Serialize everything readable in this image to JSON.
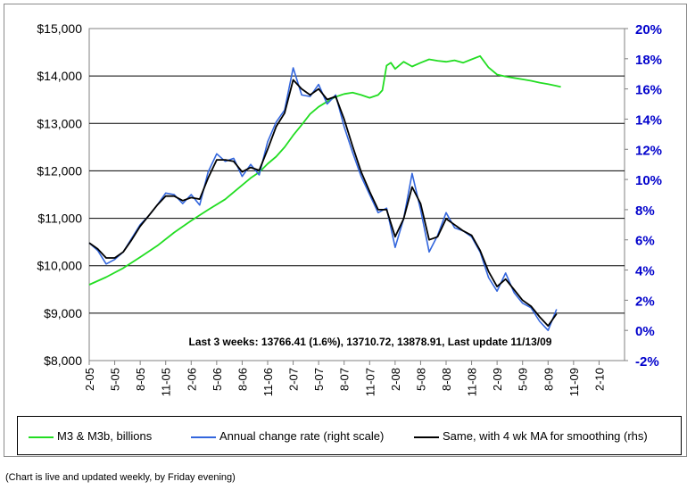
{
  "chart_data": {
    "type": "line",
    "annotation": "Last 3 weeks: 13766.41 (1.6%), 13710.72, 13878.91, Last update 11/13/09",
    "x_tick_labels": [
      "2-05",
      "5-05",
      "8-05",
      "11-05",
      "2-06",
      "5-06",
      "8-06",
      "11-06",
      "2-07",
      "5-07",
      "8-07",
      "11-07",
      "2-08",
      "5-08",
      "8-08",
      "11-08",
      "2-09",
      "5-09",
      "8-09",
      "11-09",
      "2-10"
    ],
    "left_axis": {
      "ylim": [
        8000,
        15000
      ],
      "tick_values": [
        8000,
        9000,
        10000,
        11000,
        12000,
        13000,
        14000,
        15000
      ],
      "tick_labels": [
        "$8,000",
        "$9,000",
        "$10,000",
        "$11,000",
        "$12,000",
        "$13,000",
        "$14,000",
        "$15,000"
      ]
    },
    "right_axis": {
      "ylim": [
        -2,
        20
      ],
      "tick_labels": [
        "-2%",
        "0%",
        "2%",
        "4%",
        "6%",
        "8%",
        "10%",
        "12%",
        "14%",
        "16%",
        "18%",
        "20%"
      ]
    },
    "grid": true,
    "series": [
      {
        "name": "M3 & M3b, billions",
        "axis": "left",
        "color": "#22dd22",
        "x": [
          0,
          2,
          4,
          6,
          8,
          10,
          12,
          14,
          16,
          18,
          19,
          20,
          21,
          22,
          23,
          24,
          25,
          26,
          27,
          28,
          29,
          30,
          31,
          32,
          33,
          34,
          34.5,
          35,
          35.5,
          36,
          37,
          38,
          39,
          40,
          41,
          42,
          43,
          44,
          45,
          46,
          47,
          48,
          49,
          50,
          51,
          52,
          53,
          54,
          55,
          55.5
        ],
        "values": [
          9600,
          9760,
          9950,
          10180,
          10420,
          10700,
          10950,
          11180,
          11400,
          11700,
          11850,
          11970,
          12150,
          12300,
          12500,
          12750,
          12970,
          13200,
          13350,
          13460,
          13560,
          13620,
          13650,
          13600,
          13540,
          13600,
          13700,
          14220,
          14280,
          14150,
          14300,
          14200,
          14280,
          14350,
          14320,
          14300,
          14330,
          14280,
          14350,
          14420,
          14180,
          14030,
          13990,
          13960,
          13930,
          13900,
          13860,
          13830,
          13790,
          13770
        ]
      },
      {
        "name": "Annual change rate (right scale)",
        "axis": "right",
        "color": "#3366dd",
        "x": [
          0,
          1,
          2,
          3,
          4,
          5,
          6,
          7,
          8,
          9,
          10,
          11,
          12,
          13,
          14,
          15,
          16,
          17,
          18,
          19,
          20,
          21,
          22,
          23,
          24,
          25,
          26,
          27,
          28,
          29,
          30,
          31,
          32,
          33,
          34,
          35,
          36,
          37,
          38,
          39,
          40,
          41,
          42,
          43,
          44,
          45,
          46,
          47,
          48,
          49,
          50,
          51,
          52,
          53,
          54,
          55
        ],
        "values": [
          5.8,
          5.3,
          4.4,
          4.7,
          5.2,
          6.1,
          7.0,
          7.6,
          8.3,
          9.1,
          9.0,
          8.4,
          9.0,
          8.3,
          10.5,
          11.7,
          11.2,
          11.4,
          10.2,
          11.0,
          10.3,
          12.5,
          13.8,
          14.6,
          17.4,
          15.6,
          15.5,
          16.3,
          15.0,
          15.6,
          13.5,
          11.8,
          10.2,
          9.0,
          7.8,
          8.1,
          5.5,
          7.4,
          10.4,
          8.0,
          5.2,
          6.3,
          7.8,
          6.8,
          6.6,
          6.2,
          5.2,
          3.5,
          2.6,
          3.8,
          2.5,
          1.8,
          1.5,
          0.6,
          0.0,
          1.4
        ]
      },
      {
        "name": "Same, with 4 wk MA for smoothing (rhs)",
        "axis": "right",
        "color": "#000000",
        "x": [
          0,
          1,
          2,
          3,
          4,
          5,
          6,
          7,
          8,
          9,
          10,
          11,
          12,
          13,
          14,
          15,
          16,
          17,
          18,
          19,
          20,
          21,
          22,
          23,
          24,
          25,
          26,
          27,
          28,
          29,
          30,
          31,
          32,
          33,
          34,
          35,
          36,
          37,
          38,
          39,
          40,
          41,
          42,
          43,
          44,
          45,
          46,
          47,
          48,
          49,
          50,
          51,
          52,
          53,
          54,
          55
        ],
        "values": [
          5.8,
          5.4,
          4.8,
          4.8,
          5.2,
          6.0,
          6.9,
          7.6,
          8.3,
          8.9,
          8.9,
          8.6,
          8.8,
          8.7,
          10.1,
          11.3,
          11.3,
          11.2,
          10.5,
          10.8,
          10.6,
          12.0,
          13.5,
          14.4,
          16.6,
          16.0,
          15.6,
          16.0,
          15.3,
          15.5,
          14.0,
          12.2,
          10.5,
          9.2,
          8.0,
          8.0,
          6.2,
          7.4,
          9.5,
          8.4,
          6.0,
          6.2,
          7.4,
          7.0,
          6.6,
          6.3,
          5.3,
          3.9,
          2.9,
          3.4,
          2.7,
          2.0,
          1.6,
          0.9,
          0.3,
          1.1
        ]
      }
    ]
  },
  "footnote": "(Chart is live and updated weekly, by Friday evening)"
}
